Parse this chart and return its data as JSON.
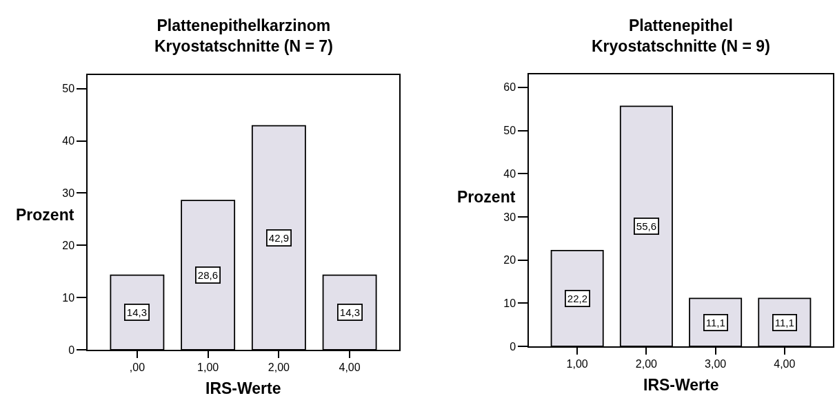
{
  "chart_data": [
    {
      "type": "bar",
      "title": "Plattenepithelkarzinom\nKryostatschnitte (N = 7)",
      "xlabel": "IRS-Werte",
      "ylabel": "Prozent",
      "categories": [
        ",00",
        "1,00",
        "2,00",
        "4,00"
      ],
      "values": [
        14.3,
        28.6,
        42.9,
        14.3
      ],
      "value_labels": [
        "14,3",
        "28,6",
        "42,9",
        "14,3"
      ],
      "color": "#e2e0ea",
      "ylim": [
        0,
        52.6
      ],
      "yticks": [
        0,
        10,
        20,
        30,
        40,
        50
      ]
    },
    {
      "type": "bar",
      "title": "Plattenepithel\nKryostatschnitte (N = 9)",
      "xlabel": "IRS-Werte",
      "ylabel": "Prozent",
      "categories": [
        "1,00",
        "2,00",
        "3,00",
        "4,00"
      ],
      "values": [
        22.2,
        55.6,
        11.1,
        11.1
      ],
      "value_labels": [
        "22,2",
        "55,6",
        "11,1",
        "11,1"
      ],
      "color": "#e2e0ea",
      "ylim": [
        0,
        63
      ],
      "yticks": [
        0,
        10,
        20,
        30,
        40,
        50,
        60
      ]
    }
  ]
}
